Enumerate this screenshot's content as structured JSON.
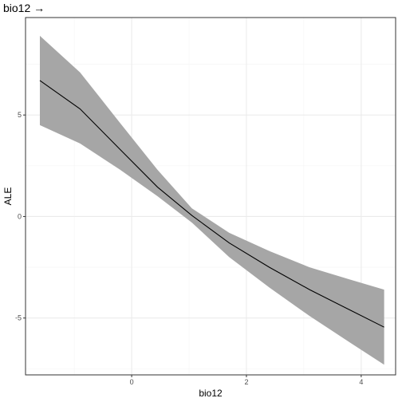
{
  "chart_data": {
    "type": "line",
    "title": "bio12 →",
    "xlabel": "bio12",
    "ylabel": "ALE",
    "xlim": [
      -1.85,
      4.6
    ],
    "ylim": [
      -7.8,
      9.8
    ],
    "x_ticks": [
      0,
      2,
      4
    ],
    "y_ticks": [
      -5,
      0,
      5
    ],
    "grid": true,
    "legend": "none",
    "series": [
      {
        "values": [
          {
            "x": -1.6,
            "y": 6.7
          },
          {
            "x": -0.9,
            "y": 5.3
          },
          {
            "x": -0.2,
            "y": 3.3
          },
          {
            "x": 0.45,
            "y": 1.45
          },
          {
            "x": 1.05,
            "y": 0.05
          },
          {
            "x": 1.7,
            "y": -1.3
          },
          {
            "x": 2.4,
            "y": -2.5
          },
          {
            "x": 3.1,
            "y": -3.6
          },
          {
            "x": 3.8,
            "y": -4.6
          },
          {
            "x": 4.4,
            "y": -5.45
          }
        ]
      }
    ],
    "band": {
      "x": [
        -1.6,
        -0.9,
        -0.2,
        0.45,
        1.05,
        1.7,
        2.4,
        3.1,
        3.8,
        4.4
      ],
      "upper": [
        8.9,
        7.1,
        4.6,
        2.3,
        0.4,
        -0.8,
        -1.7,
        -2.5,
        -3.1,
        -3.6
      ],
      "lower": [
        4.5,
        3.6,
        2.3,
        1.0,
        -0.3,
        -2.0,
        -3.5,
        -4.9,
        -6.2,
        -7.3
      ]
    },
    "colors": {
      "line": "#000000",
      "band": "#a6a6a6",
      "grid_major": "#ebebeb",
      "grid_minor": "#f5f5f5",
      "panel_border": "#333333"
    }
  }
}
